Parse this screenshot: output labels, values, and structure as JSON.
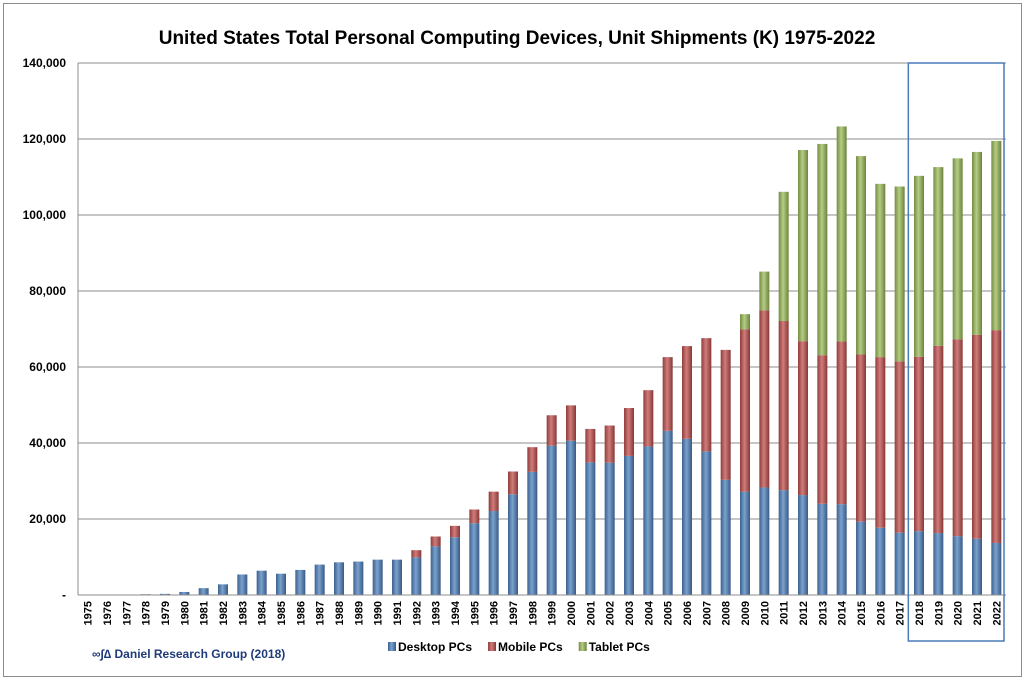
{
  "chart_data": {
    "type": "bar",
    "stacked": true,
    "title": "United States Total Personal Computing Devices, Unit Shipments (K) 1975-2022",
    "xlabel": "",
    "ylabel": "",
    "ylim": [
      0,
      140000
    ],
    "yticks": [
      "-",
      "20,000",
      "40,000",
      "60,000",
      "80,000",
      "100,000",
      "120,000",
      "140,000"
    ],
    "ytick_values": [
      0,
      20000,
      40000,
      60000,
      80000,
      100000,
      120000,
      140000
    ],
    "grid": true,
    "legend_position": "bottom",
    "categories": [
      "1975",
      "1976",
      "1977",
      "1978",
      "1979",
      "1980",
      "1981",
      "1982",
      "1983",
      "1984",
      "1985",
      "1986",
      "1987",
      "1988",
      "1989",
      "1990",
      "1991",
      "1992",
      "1993",
      "1994",
      "1995",
      "1996",
      "1997",
      "1998",
      "1999",
      "2000",
      "2001",
      "2002",
      "2003",
      "2004",
      "2005",
      "2006",
      "2007",
      "2008",
      "2009",
      "2010",
      "2011",
      "2012",
      "2013",
      "2014",
      "2015",
      "2016",
      "2017",
      "2018",
      "2019",
      "2020",
      "2021",
      "2022"
    ],
    "series": [
      {
        "name": "Desktop PCs",
        "color": "#4f81bd",
        "values": [
          100,
          100,
          100,
          200,
          300,
          800,
          1800,
          2800,
          5400,
          6400,
          5600,
          6600,
          8000,
          8600,
          8800,
          9300,
          9300,
          9900,
          12800,
          15200,
          18900,
          22100,
          26500,
          32400,
          39300,
          40600,
          34900,
          34800,
          36600,
          39100,
          43200,
          41100,
          37800,
          30300,
          27200,
          28300,
          27600,
          26300,
          24000,
          23900,
          19300,
          17700,
          16400,
          16800,
          16300,
          15500,
          14800,
          13700
        ]
      },
      {
        "name": "Mobile PCs",
        "color": "#c0504d",
        "values": [
          0,
          0,
          0,
          0,
          0,
          0,
          0,
          0,
          0,
          0,
          0,
          0,
          0,
          0,
          0,
          0,
          0,
          1900,
          2600,
          3000,
          3600,
          5100,
          6000,
          6500,
          8000,
          9300,
          8800,
          9800,
          12600,
          14800,
          19400,
          24400,
          29800,
          34200,
          42700,
          46600,
          44500,
          40500,
          39100,
          42800,
          44000,
          44900,
          45100,
          45900,
          49300,
          51800,
          53700,
          56000
        ]
      },
      {
        "name": "Tablet PCs",
        "color": "#9bbb59",
        "values": [
          0,
          0,
          0,
          0,
          0,
          0,
          0,
          0,
          0,
          0,
          0,
          0,
          0,
          0,
          0,
          0,
          0,
          0,
          0,
          0,
          0,
          0,
          0,
          0,
          0,
          0,
          0,
          0,
          0,
          0,
          0,
          0,
          0,
          0,
          4000,
          10200,
          34000,
          50300,
          55600,
          56600,
          52200,
          45600,
          46000,
          47600,
          47000,
          47600,
          48100,
          49800
        ]
      }
    ],
    "highlight_range": [
      "2018",
      "2022"
    ]
  },
  "source_note": "∞∫∆ Daniel Research Group (2018)"
}
